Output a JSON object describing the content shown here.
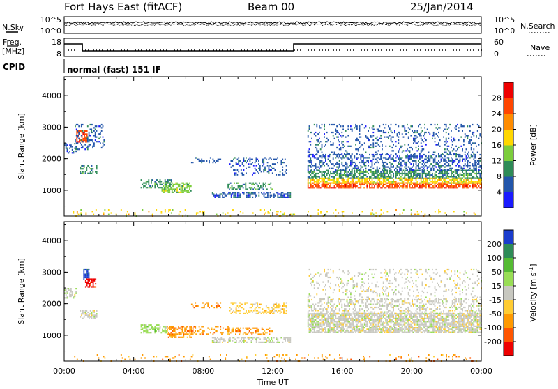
{
  "header": {
    "station": "Fort Hays East (fitACF)",
    "beam": "Beam 00",
    "date": "25/Jan/2014"
  },
  "top_panels": {
    "nsky_label": "N.Sky",
    "nsearch_label": "N.Search",
    "freq_label_1": "Freq.",
    "freq_label_2": "[MHz]",
    "nave_label": "Nave",
    "cpid_label": "CPID",
    "cpid_text": "normal (fast) 151 IF",
    "noise_ticks": [
      "10^5",
      "10^0"
    ],
    "freq_ticks": [
      "18",
      "8"
    ],
    "nave_ticks": [
      "60",
      "0"
    ]
  },
  "chart_data": [
    {
      "type": "heatmap",
      "name": "power",
      "xlabel": "",
      "ylabel": "Slant Range [km]",
      "x_range_hours": [
        0,
        24
      ],
      "ylim": [
        180,
        4600
      ],
      "y_ticks": [
        1000,
        2000,
        3000,
        4000
      ],
      "x_ticks": [
        "00:00",
        "04:00",
        "08:00",
        "12:00",
        "16:00",
        "20:00",
        "00:00"
      ],
      "colorbar": {
        "label": "Power [dB]",
        "ticks": [
          "4",
          "8",
          "12",
          "16",
          "20",
          "24",
          "28"
        ],
        "colors": [
          "#1a1aff",
          "#2255aa",
          "#2e8b57",
          "#7ccd3c",
          "#ffd700",
          "#ff8c00",
          "#ff4500",
          "#ee0000"
        ]
      },
      "regions": [
        {
          "t0": 4.4,
          "t1": 6.2,
          "r0": 1100,
          "r1": 1350,
          "level": 2,
          "density": 0.5
        },
        {
          "t0": 5.6,
          "t1": 7.3,
          "r0": 950,
          "r1": 1250,
          "level": 3,
          "density": 0.6
        },
        {
          "t0": 8.5,
          "t1": 13.0,
          "r0": 800,
          "r1": 950,
          "level": 1,
          "density": 0.5
        },
        {
          "t0": 9.4,
          "t1": 12.0,
          "r0": 1050,
          "r1": 1250,
          "level": 2,
          "density": 0.45
        },
        {
          "t0": 9.5,
          "t1": 12.8,
          "r0": 1500,
          "r1": 2050,
          "level": 1,
          "density": 0.25
        },
        {
          "t0": 7.3,
          "t1": 9.0,
          "r0": 1900,
          "r1": 2050,
          "level": 1,
          "density": 0.3
        },
        {
          "t0": 0.7,
          "t1": 1.3,
          "r0": 2550,
          "r1": 2900,
          "level": 6,
          "density": 0.7
        },
        {
          "t0": 0.6,
          "t1": 2.3,
          "r0": 2300,
          "r1": 3100,
          "level": 1,
          "density": 0.25
        },
        {
          "t0": 0.9,
          "t1": 1.9,
          "r0": 1550,
          "r1": 1800,
          "level": 2,
          "density": 0.5
        },
        {
          "t0": 0.0,
          "t1": 0.7,
          "r0": 2200,
          "r1": 2500,
          "level": 1,
          "density": 0.4
        },
        {
          "t0": 14.0,
          "t1": 24.0,
          "r0": 1100,
          "r1": 1250,
          "level": 6,
          "density": 0.7
        },
        {
          "t0": 14.0,
          "t1": 24.0,
          "r0": 1250,
          "r1": 1400,
          "level": 4,
          "density": 0.65
        },
        {
          "t0": 14.0,
          "t1": 24.0,
          "r0": 1400,
          "r1": 1650,
          "level": 2,
          "density": 0.6
        },
        {
          "t0": 14.0,
          "t1": 24.0,
          "r0": 1650,
          "r1": 2150,
          "level": 1,
          "density": 0.4
        },
        {
          "t0": 14.0,
          "t1": 24.0,
          "r0": 2150,
          "r1": 3100,
          "level": 1,
          "density": 0.18
        },
        {
          "t0": 0.5,
          "t1": 24.0,
          "r0": 200,
          "r1": 400,
          "level": 4,
          "density": 0.08
        }
      ]
    },
    {
      "type": "heatmap",
      "name": "velocity",
      "xlabel": "Time UT",
      "ylabel": "Slant Range [km]",
      "x_range_hours": [
        0,
        24
      ],
      "ylim": [
        180,
        4600
      ],
      "y_ticks": [
        1000,
        2000,
        3000,
        4000
      ],
      "x_ticks": [
        "00:00",
        "04:00",
        "08:00",
        "12:00",
        "16:00",
        "20:00",
        "00:00"
      ],
      "colorbar": {
        "label": "Velocity [m s",
        "label_sup": "-1",
        "label_end": "]",
        "ticks": [
          "200",
          "100",
          "50",
          "15",
          "-15",
          "-50",
          "-100",
          "-200"
        ],
        "colors": [
          "#1a3ccd",
          "#2e8b57",
          "#55bb33",
          "#99dd55",
          "#c8c8c0",
          "#ffcc33",
          "#ff9900",
          "#ff5500",
          "#ee0000"
        ]
      },
      "regions": [
        {
          "t0": 4.4,
          "t1": 5.9,
          "r0": 1100,
          "r1": 1350,
          "level": 3,
          "density": 0.55
        },
        {
          "t0": 5.9,
          "t1": 7.3,
          "r0": 950,
          "r1": 1300,
          "level": 6,
          "density": 0.6
        },
        {
          "t0": 7.3,
          "t1": 9.5,
          "r0": 1050,
          "r1": 1300,
          "level": 6,
          "density": 0.3
        },
        {
          "t0": 8.5,
          "t1": 13.0,
          "r0": 800,
          "r1": 950,
          "level": 4,
          "density": 0.5
        },
        {
          "t0": 9.4,
          "t1": 12.0,
          "r0": 1050,
          "r1": 1250,
          "level": 6,
          "density": 0.4
        },
        {
          "t0": 9.5,
          "t1": 12.8,
          "r0": 1700,
          "r1": 2050,
          "level": 5,
          "density": 0.3
        },
        {
          "t0": 7.3,
          "t1": 9.0,
          "r0": 1900,
          "r1": 2050,
          "level": 6,
          "density": 0.35
        },
        {
          "t0": 1.1,
          "t1": 1.4,
          "r0": 2800,
          "r1": 3100,
          "level": 0,
          "density": 0.8
        },
        {
          "t0": 1.2,
          "t1": 1.8,
          "r0": 2550,
          "r1": 2800,
          "level": 8,
          "density": 0.7
        },
        {
          "t0": 0.9,
          "t1": 1.9,
          "r0": 1550,
          "r1": 1800,
          "level": 4,
          "density": 0.5
        },
        {
          "t0": 0.0,
          "t1": 0.7,
          "r0": 2200,
          "r1": 2500,
          "level": 4,
          "density": 0.4
        },
        {
          "t0": 14.0,
          "t1": 24.0,
          "r0": 1100,
          "r1": 1700,
          "level": 4,
          "density": 0.75
        },
        {
          "t0": 14.0,
          "t1": 24.0,
          "r0": 1700,
          "r1": 2150,
          "level": 4,
          "density": 0.35
        },
        {
          "t0": 14.0,
          "t1": 24.0,
          "r0": 2150,
          "r1": 3100,
          "level": 4,
          "density": 0.15
        },
        {
          "t0": 0.5,
          "t1": 24.0,
          "r0": 200,
          "r1": 400,
          "level": 6,
          "density": 0.08
        }
      ]
    }
  ]
}
